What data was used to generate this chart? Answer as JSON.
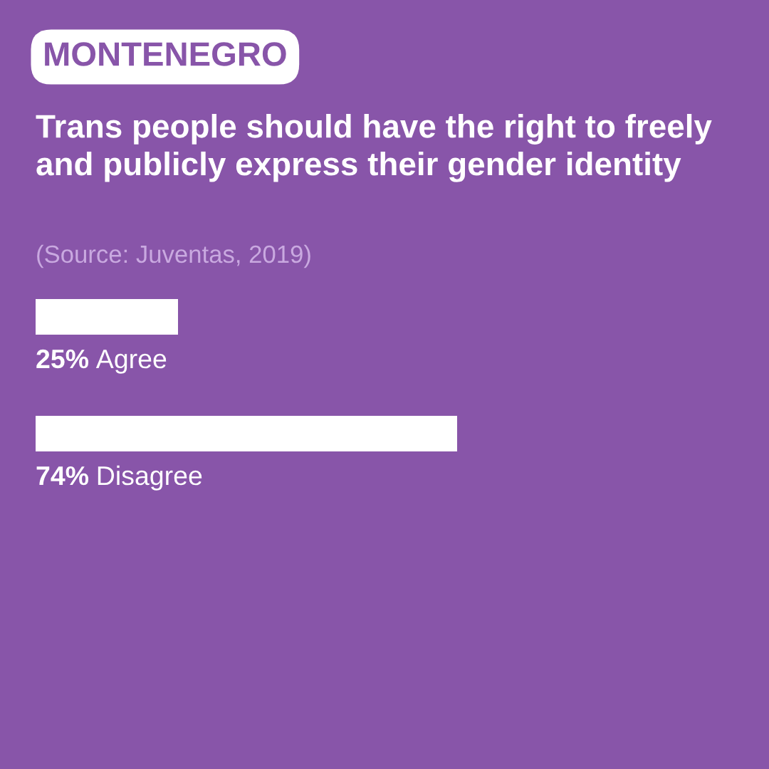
{
  "chart_data": {
    "type": "bar",
    "orientation": "horizontal",
    "title": "MONTENEGRO",
    "subtitle": "Trans people should have the right to freely and publicly express their gender identity",
    "annotations": [
      "(Source: Juventas, 2019)"
    ],
    "categories": [
      "Agree",
      "Disagree"
    ],
    "values": [
      25,
      74
    ],
    "value_labels": [
      "25%",
      "74%"
    ],
    "color": "#ffffff"
  }
}
